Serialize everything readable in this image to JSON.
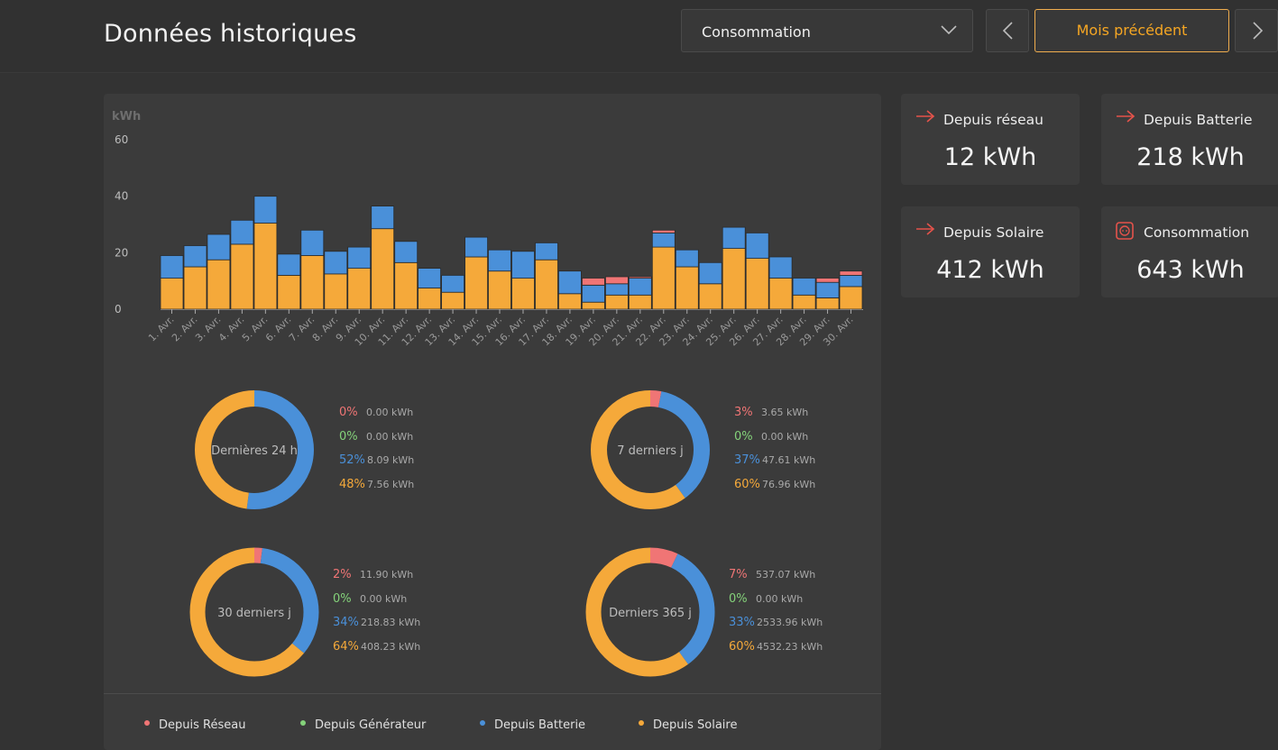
{
  "header": {
    "title": "Données historiques",
    "select_value": "Consommation",
    "prev_month_label": "Mois précédent"
  },
  "cards": [
    {
      "label": "Depuis réseau",
      "value": "12 kWh",
      "icon": "arrow-right-icon"
    },
    {
      "label": "Depuis Batterie",
      "value": "218 kWh",
      "icon": "arrow-right-icon"
    },
    {
      "label": "Depuis Solaire",
      "value": "412 kWh",
      "icon": "arrow-right-icon"
    },
    {
      "label": "Consommation",
      "value": "643 kWh",
      "icon": "power-socket-icon"
    }
  ],
  "colors": {
    "grid": "#f07575",
    "generator": "#84d27a",
    "battery": "#4a90d9",
    "solar": "#f5a93a",
    "accent": "#f5a623"
  },
  "chart_data": {
    "type": "bar",
    "stacked": true,
    "ylabel": "kWh",
    "ylim": [
      0,
      60
    ],
    "yticks": [
      0,
      20,
      40,
      60
    ],
    "categories": [
      "1. Avr.",
      "2. Avr.",
      "3. Avr.",
      "4. Avr.",
      "5. Avr.",
      "6. Avr.",
      "7. Avr.",
      "8. Avr.",
      "9. Avr.",
      "10. Avr.",
      "11. Avr.",
      "12. Avr.",
      "13. Avr.",
      "14. Avr.",
      "15. Avr.",
      "16. Avr.",
      "17. Avr.",
      "18. Avr.",
      "19. Avr.",
      "20. Avr.",
      "21. Avr.",
      "22. Avr.",
      "23. Avr.",
      "24. Avr.",
      "25. Avr.",
      "26. Avr.",
      "27. Avr.",
      "28. Avr.",
      "29. Avr.",
      "30. Avr."
    ],
    "series": [
      {
        "name": "Depuis Solaire",
        "color": "#f5a93a",
        "values": [
          11,
          15,
          17.5,
          23,
          30.5,
          12,
          19,
          12.5,
          14.5,
          28.5,
          16.5,
          7.5,
          6,
          18.5,
          13.5,
          11,
          17.5,
          5.5,
          2.5,
          5,
          5,
          22,
          15,
          9,
          21.5,
          18,
          11,
          5,
          4,
          8
        ]
      },
      {
        "name": "Depuis Batterie",
        "color": "#4a90d9",
        "values": [
          8,
          7.5,
          9,
          8.5,
          9.5,
          7.5,
          9,
          8,
          7.5,
          8,
          7.5,
          7,
          6,
          7,
          7.5,
          9.5,
          6,
          8,
          6,
          4,
          6,
          5,
          6,
          7.5,
          7.5,
          9,
          7.5,
          6,
          5.5,
          4
        ]
      },
      {
        "name": "Depuis Réseau",
        "color": "#f07575",
        "values": [
          0,
          0,
          0,
          0,
          0,
          0,
          0,
          0,
          0,
          0,
          0,
          0,
          0,
          0,
          0,
          0,
          0,
          0,
          2.5,
          2.5,
          0.5,
          1,
          0,
          0,
          0,
          0,
          0,
          0,
          1.5,
          1.5
        ]
      }
    ]
  },
  "donuts": [
    {
      "label": "Dernières 24 h",
      "rows": [
        {
          "pct": "0%",
          "kwh": "0.00 kWh"
        },
        {
          "pct": "0%",
          "kwh": "0.00 kWh"
        },
        {
          "pct": "52%",
          "kwh": "8.09 kWh"
        },
        {
          "pct": "48%",
          "kwh": "7.56 kWh"
        }
      ],
      "fractions": [
        0,
        0,
        0.52,
        0.48
      ]
    },
    {
      "label": "7 derniers j",
      "rows": [
        {
          "pct": "3%",
          "kwh": "3.65 kWh"
        },
        {
          "pct": "0%",
          "kwh": "0.00 kWh"
        },
        {
          "pct": "37%",
          "kwh": "47.61 kWh"
        },
        {
          "pct": "60%",
          "kwh": "76.96 kWh"
        }
      ],
      "fractions": [
        0.03,
        0,
        0.37,
        0.6
      ]
    },
    {
      "label": "30 derniers j",
      "rows": [
        {
          "pct": "2%",
          "kwh": "11.90 kWh"
        },
        {
          "pct": "0%",
          "kwh": "0.00 kWh"
        },
        {
          "pct": "34%",
          "kwh": "218.83 kWh"
        },
        {
          "pct": "64%",
          "kwh": "408.23 kWh"
        }
      ],
      "fractions": [
        0.02,
        0,
        0.34,
        0.64
      ]
    },
    {
      "label": "Derniers 365 j",
      "rows": [
        {
          "pct": "7%",
          "kwh": "537.07 kWh"
        },
        {
          "pct": "0%",
          "kwh": "0.00 kWh"
        },
        {
          "pct": "33%",
          "kwh": "2533.96 kWh"
        },
        {
          "pct": "60%",
          "kwh": "4532.23 kWh"
        }
      ],
      "fractions": [
        0.07,
        0,
        0.33,
        0.6
      ]
    }
  ],
  "legend": [
    {
      "label": "Depuis Réseau",
      "color": "#f07575"
    },
    {
      "label": "Depuis Générateur",
      "color": "#84d27a"
    },
    {
      "label": "Depuis Batterie",
      "color": "#4a90d9"
    },
    {
      "label": "Depuis Solaire",
      "color": "#f5a93a"
    }
  ]
}
